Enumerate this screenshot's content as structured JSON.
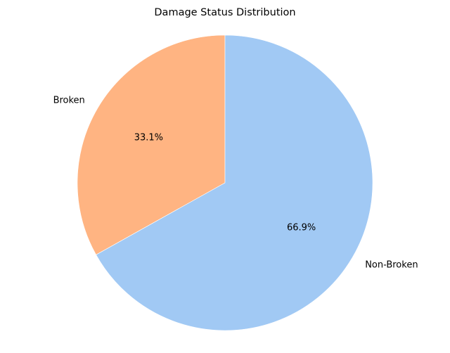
{
  "chart_data": {
    "type": "pie",
    "title": "Damage Status Distribution",
    "slices": [
      {
        "label": "Broken",
        "value": 33.1,
        "pct_label": "33.1%",
        "color": "#ffb482"
      },
      {
        "label": "Non-Broken",
        "value": 66.9,
        "pct_label": "66.9%",
        "color": "#a1c9f4"
      }
    ],
    "start_angle_deg": 90,
    "direction": "counterclockwise",
    "legend": "none"
  }
}
